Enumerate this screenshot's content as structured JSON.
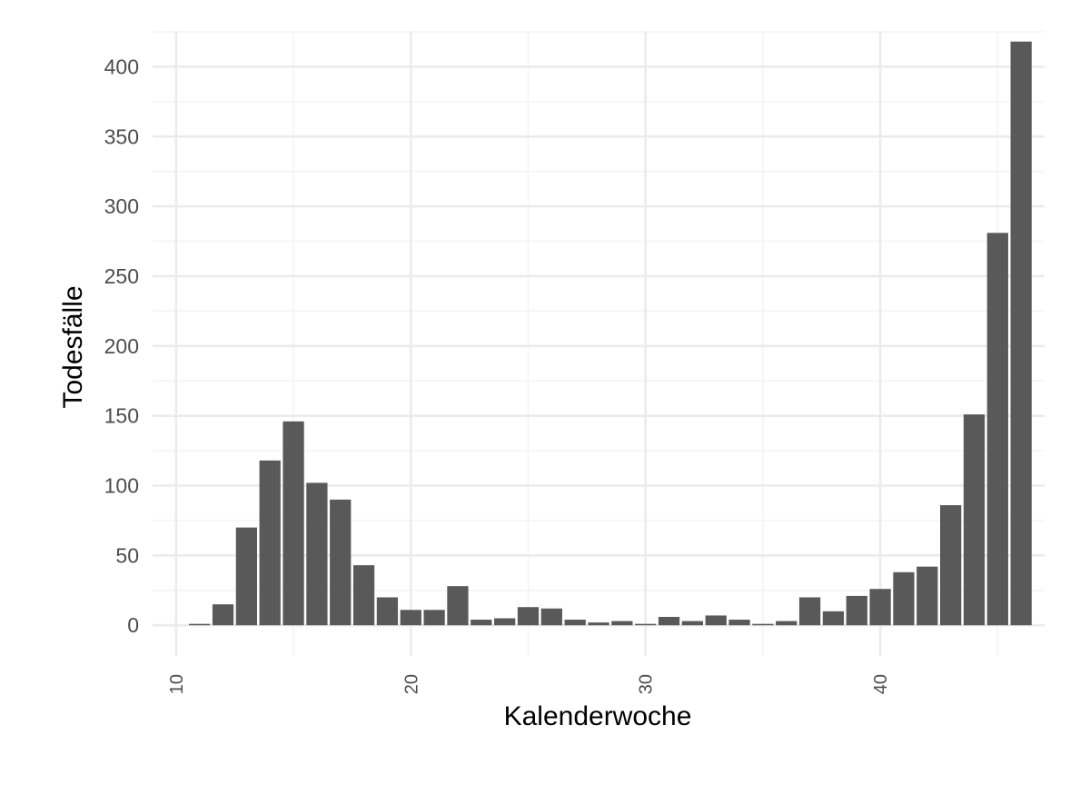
{
  "chart_data": {
    "type": "bar",
    "xlabel": "Kalenderwoche",
    "ylabel": "Todesfälle",
    "xlim": [
      9,
      47
    ],
    "ylim": [
      -22,
      425
    ],
    "x_ticks": [
      10,
      20,
      30,
      40
    ],
    "y_ticks": [
      0,
      50,
      100,
      150,
      200,
      250,
      300,
      350,
      400
    ],
    "grid": true,
    "bar_color": "#595959",
    "x": [
      11,
      12,
      13,
      14,
      15,
      16,
      17,
      18,
      19,
      20,
      21,
      22,
      23,
      24,
      25,
      26,
      27,
      28,
      29,
      30,
      31,
      32,
      33,
      34,
      35,
      36,
      37,
      38,
      39,
      40,
      41,
      42,
      43,
      44,
      45,
      46
    ],
    "values": [
      1,
      15,
      70,
      118,
      146,
      102,
      90,
      43,
      20,
      11,
      11,
      28,
      4,
      5,
      13,
      12,
      4,
      2,
      3,
      1,
      6,
      3,
      7,
      4,
      1,
      3,
      20,
      10,
      21,
      26,
      38,
      42,
      86,
      151,
      281,
      418
    ]
  }
}
